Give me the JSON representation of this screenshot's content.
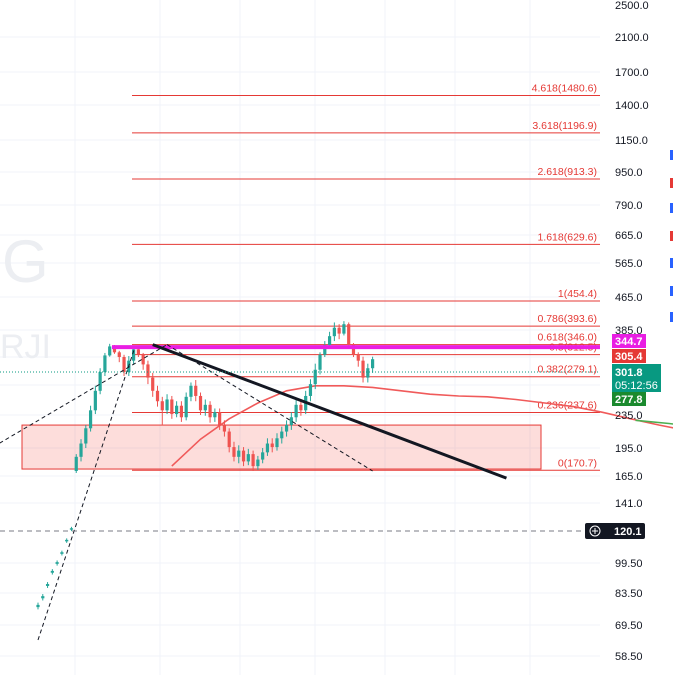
{
  "watermark": {
    "letter": "G",
    "sub": "RJI"
  },
  "price_axis": {
    "ticks": [
      "2500.0",
      "2100.0",
      "1700.0",
      "1400.0",
      "1150.0",
      "950.0",
      "790.0",
      "665.0",
      "565.0",
      "465.0",
      "385.0",
      "345.0",
      "305.0",
      "235.0",
      "195.0",
      "165.0",
      "141.0",
      "120.0",
      "99.50",
      "83.50",
      "69.50",
      "58.50"
    ],
    "log_scale": true
  },
  "price_tags": {
    "resistance": {
      "value": "344.7",
      "color": "#e91ee3"
    },
    "high": {
      "value": "305.4",
      "color": "#e53935"
    },
    "last": {
      "value": "301.8",
      "countdown": "05:12:56",
      "color": "#089981"
    },
    "ma": {
      "value": "277.8",
      "color": "#1b8a2e"
    },
    "crosshair": {
      "value": "120.1",
      "color": "#131722"
    }
  },
  "chart_data": {
    "type": "candlestick",
    "y_scale": "log",
    "ylim": [
      55,
      2700
    ],
    "fibonacci": [
      {
        "level": "4.618",
        "price": 1480.6,
        "label": "4.618(1480.6)"
      },
      {
        "level": "3.618",
        "price": 1196.9,
        "label": "3.618(1196.9)"
      },
      {
        "level": "2.618",
        "price": 913.3,
        "label": "2.618(913.3)"
      },
      {
        "level": "1.618",
        "price": 629.6,
        "label": "1.618(629.6)"
      },
      {
        "level": "1",
        "price": 454.4,
        "label": "1(454.4)"
      },
      {
        "level": "0.786",
        "price": 393.6,
        "label": "0.786(393.6)"
      },
      {
        "level": "0.618",
        "price": 346.0,
        "label": "0.618(346.0)"
      },
      {
        "level": "0.5",
        "price": 312.5,
        "label": "0.5(312.5)"
      },
      {
        "level": "0.382",
        "price": 279.1,
        "label": "0.382(279.1)"
      },
      {
        "level": "0.236",
        "price": 237.6,
        "label": "0.236(237.6)"
      },
      {
        "level": "0",
        "price": 170.7,
        "label": "0(170.7)"
      }
    ],
    "resistance_level": 344.7,
    "demand_zone": [
      172,
      222
    ],
    "candles": [
      [
        78,
        77,
        76,
        79,
        1
      ],
      [
        82,
        81,
        80,
        83,
        1
      ],
      [
        88,
        87,
        86,
        89,
        1
      ],
      [
        95,
        94,
        93,
        96,
        1
      ],
      [
        100,
        99,
        98,
        101,
        1
      ],
      [
        106,
        105,
        104,
        107,
        1
      ],
      [
        114,
        113,
        112,
        115,
        1
      ],
      [
        122,
        121,
        120,
        123,
        1
      ],
      [
        170,
        185,
        168,
        188,
        1
      ],
      [
        185,
        200,
        180,
        205,
        1
      ],
      [
        200,
        218,
        195,
        222,
        1
      ],
      [
        218,
        240,
        214,
        245,
        1
      ],
      [
        240,
        262,
        236,
        268,
        1
      ],
      [
        262,
        285,
        258,
        290,
        1
      ],
      [
        285,
        310,
        280,
        318,
        1
      ],
      [
        310,
        340,
        306,
        348,
        1
      ],
      [
        340,
        320,
        315,
        345,
        0
      ],
      [
        320,
        305,
        298,
        325,
        0
      ],
      [
        305,
        285,
        280,
        312,
        0
      ],
      [
        285,
        300,
        280,
        308,
        1
      ],
      [
        300,
        330,
        295,
        340,
        1
      ],
      [
        330,
        312,
        305,
        335,
        0
      ],
      [
        312,
        295,
        288,
        318,
        0
      ],
      [
        295,
        278,
        270,
        300,
        0
      ],
      [
        278,
        262,
        255,
        284,
        0
      ],
      [
        262,
        250,
        244,
        268,
        0
      ],
      [
        250,
        240,
        222,
        255,
        0
      ],
      [
        240,
        252,
        236,
        258,
        1
      ],
      [
        252,
        236,
        230,
        256,
        0
      ],
      [
        236,
        245,
        232,
        250,
        1
      ],
      [
        245,
        232,
        226,
        250,
        0
      ],
      [
        232,
        255,
        228,
        260,
        1
      ],
      [
        255,
        268,
        250,
        272,
        1
      ],
      [
        268,
        256,
        250,
        275,
        0
      ],
      [
        256,
        240,
        235,
        260,
        0
      ],
      [
        240,
        246,
        234,
        252,
        1
      ],
      [
        246,
        232,
        225,
        250,
        0
      ],
      [
        232,
        238,
        226,
        242,
        1
      ],
      [
        238,
        222,
        216,
        242,
        0
      ],
      [
        222,
        214,
        208,
        228,
        0
      ],
      [
        214,
        196,
        190,
        218,
        0
      ],
      [
        196,
        185,
        180,
        202,
        0
      ],
      [
        185,
        192,
        178,
        198,
        1
      ],
      [
        192,
        180,
        175,
        196,
        0
      ],
      [
        180,
        188,
        176,
        194,
        1
      ],
      [
        188,
        175,
        170,
        192,
        0
      ],
      [
        175,
        182,
        171,
        186,
        1
      ],
      [
        182,
        190,
        178,
        195,
        1
      ],
      [
        190,
        200,
        186,
        206,
        1
      ],
      [
        200,
        196,
        190,
        206,
        0
      ],
      [
        196,
        206,
        192,
        212,
        1
      ],
      [
        206,
        214,
        200,
        220,
        1
      ],
      [
        214,
        222,
        208,
        228,
        1
      ],
      [
        222,
        232,
        216,
        238,
        1
      ],
      [
        232,
        246,
        226,
        252,
        1
      ],
      [
        246,
        240,
        234,
        252,
        0
      ],
      [
        240,
        256,
        236,
        262,
        1
      ],
      [
        256,
        270,
        250,
        276,
        1
      ],
      [
        270,
        288,
        264,
        296,
        1
      ],
      [
        288,
        312,
        282,
        320,
        1
      ],
      [
        312,
        345,
        305,
        355,
        1
      ],
      [
        345,
        368,
        338,
        380,
        1
      ],
      [
        368,
        390,
        355,
        402,
        1
      ],
      [
        390,
        375,
        360,
        398,
        0
      ],
      [
        375,
        398,
        370,
        405,
        1
      ],
      [
        398,
        345,
        340,
        402,
        0
      ],
      [
        345,
        312,
        305,
        350,
        0
      ],
      [
        312,
        300,
        292,
        320,
        0
      ],
      [
        300,
        278,
        272,
        306,
        0
      ],
      [
        278,
        290,
        272,
        296,
        1
      ],
      [
        290,
        302,
        284,
        306,
        1
      ]
    ],
    "moving_averages": [
      {
        "name": "",
        "color": "#f05a5a",
        "x": [
          28,
          34,
          40,
          46,
          52,
          58,
          64,
          70,
          76,
          82,
          88,
          94,
          100,
          106,
          112,
          118,
          124,
          130,
          136,
          142,
          148,
          154,
          160,
          166,
          172,
          178,
          184,
          190,
          196,
          202,
          208,
          214,
          220,
          226,
          232,
          238,
          244,
          250,
          256,
          262,
          268,
          274,
          280,
          286,
          290
        ],
        "y": [
          175,
          205,
          230,
          248,
          262,
          268,
          268,
          266,
          262,
          258,
          256,
          255,
          252,
          248,
          244,
          238,
          230,
          222,
          215,
          210,
          206,
          204,
          204,
          206,
          208,
          210,
          212,
          214,
          218,
          222,
          228,
          236,
          245,
          256,
          270,
          285,
          300,
          312,
          318,
          318,
          314,
          306,
          298,
          294,
          294
        ]
      },
      {
        "name": "",
        "color": "#4caf50",
        "x": [
          125,
          132,
          140,
          148,
          156,
          164,
          172,
          180,
          188,
          196,
          204,
          212,
          220,
          228,
          236,
          244,
          252,
          260,
          268,
          276,
          284,
          290
        ],
        "y": [
          228,
          224,
          218,
          212,
          206,
          204,
          202,
          202,
          204,
          208,
          214,
          222,
          230,
          240,
          250,
          258,
          264,
          270,
          274,
          276,
          277,
          277.8
        ]
      }
    ],
    "trendlines": [
      {
        "from": [
          24,
          346
        ],
        "to": [
          98,
          163
        ],
        "color": "#131722",
        "style": "solid"
      },
      {
        "from": [
          -80,
          62
        ],
        "to": [
          27,
          346
        ],
        "color": "#131722",
        "style": "dashed"
      },
      {
        "from": [
          27,
          346
        ],
        "to": [
          70,
          170
        ],
        "color": "#131722",
        "style": "dashed"
      }
    ]
  }
}
